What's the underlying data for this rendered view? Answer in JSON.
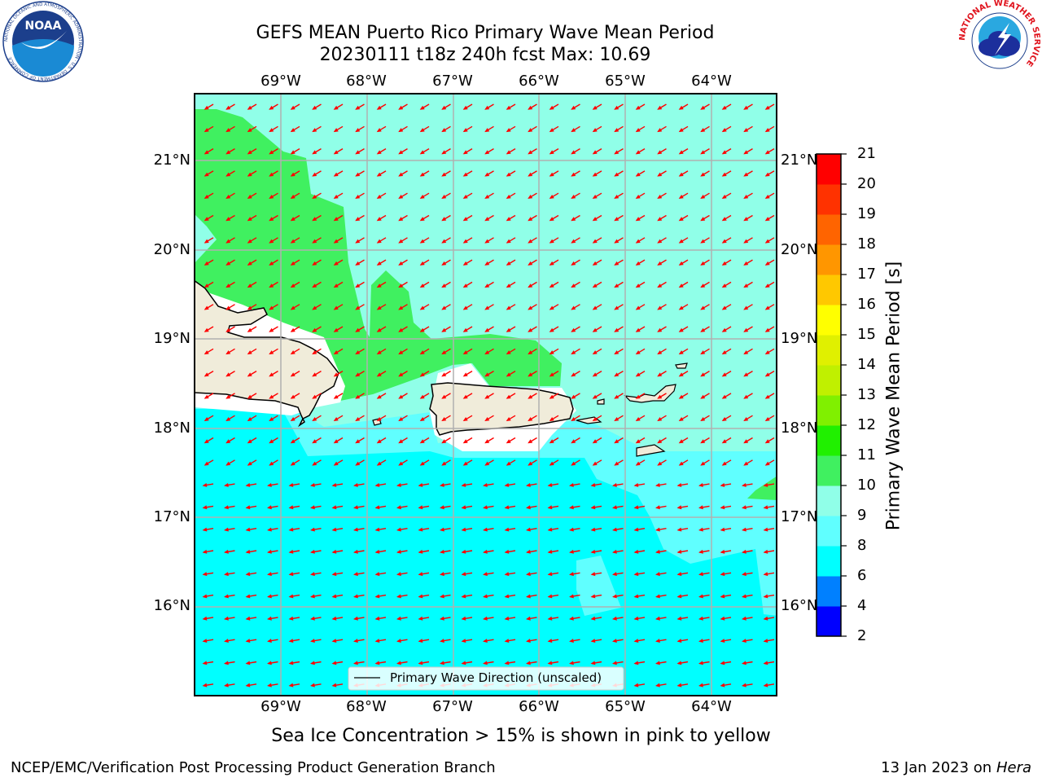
{
  "header": {
    "title_line1": "GEFS MEAN Puerto Rico Primary Wave Mean Period",
    "title_line2": "20230111 t18z 240h fcst   Max: 10.69"
  },
  "logos": {
    "noaa_text": "NOAA",
    "noaa_ring": "NATIONAL OCEANIC AND ATMOSPHERIC ADMINISTRATION · U.S. DEPARTMENT OF COMMERCE",
    "nws_ring": "NATIONAL WEATHER SERVICE"
  },
  "map": {
    "lon_labels": [
      "69°W",
      "68°W",
      "67°W",
      "66°W",
      "65°W",
      "64°W"
    ],
    "lat_labels": [
      "21°N",
      "20°N",
      "19°N",
      "18°N",
      "17°N",
      "16°N"
    ],
    "lon_ticks": [
      -69,
      -68,
      -67,
      -66,
      -65,
      -64
    ],
    "lat_ticks": [
      21,
      20,
      19,
      18,
      17,
      16
    ],
    "lon_range": [
      -70,
      -63.25
    ],
    "lat_range": [
      15,
      21.75
    ],
    "legend_label": "Primary Wave Direction (unscaled)",
    "arrow_color": "#ff0000",
    "land_color": "#f0ecda",
    "grid": true
  },
  "colorbar": {
    "label": "Primary Wave Mean Period [s]",
    "levels": [
      2,
      4,
      6,
      8,
      9,
      10,
      11,
      12,
      13,
      14,
      15,
      16,
      17,
      18,
      19,
      20,
      21
    ],
    "colors": [
      "#0000ff",
      "#0080ff",
      "#00ffff",
      "#60ffff",
      "#90ffe8",
      "#40f060",
      "#20f000",
      "#80f000",
      "#c0f000",
      "#e0f000",
      "#ffff00",
      "#ffc800",
      "#ff9600",
      "#ff6400",
      "#ff3200",
      "#ff0000"
    ]
  },
  "notes": {
    "sea_ice": "Sea Ice Concentration > 15% is shown in pink to yellow"
  },
  "footer": {
    "left": "NCEP/EMC/Verification Post Processing Product Generation Branch",
    "right_date": "13 Jan 2023 on ",
    "right_machine": "Hera"
  }
}
